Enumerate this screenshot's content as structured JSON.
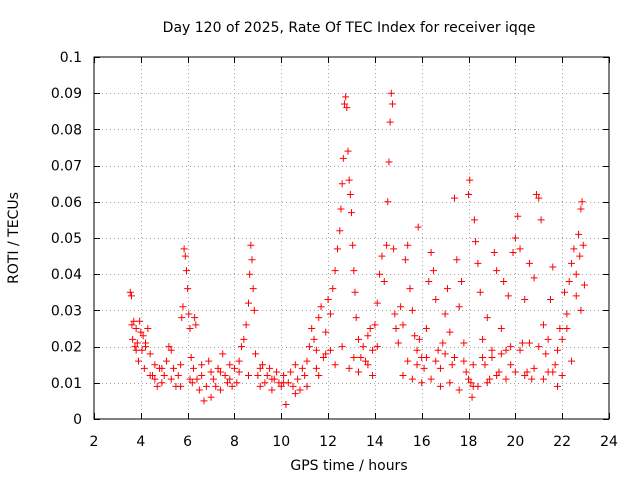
{
  "chart_data": {
    "type": "scatter",
    "title": "Day 120 of 2025, Rate Of TEC Index for receiver iqqe",
    "xlabel": "GPS time / hours",
    "ylabel": "ROTI / TECUs",
    "xlim": [
      2,
      24
    ],
    "ylim": [
      0,
      0.1
    ],
    "xticks": [
      2,
      4,
      6,
      8,
      10,
      12,
      14,
      16,
      18,
      20,
      22,
      24
    ],
    "yticks": [
      0,
      0.01,
      0.02,
      0.03,
      0.04,
      0.05,
      0.06,
      0.07,
      0.08,
      0.09,
      0.1
    ],
    "xtick_labels": [
      "2",
      "4",
      "6",
      "8",
      "10",
      "12",
      "14",
      "16",
      "18",
      "20",
      "22",
      "24"
    ],
    "ytick_labels": [
      "0",
      "0.01",
      "0.02",
      "0.03",
      "0.04",
      "0.05",
      "0.06",
      "0.07",
      "0.08",
      "0.09",
      "0.1"
    ],
    "marker": "+",
    "grid": true,
    "series": [
      {
        "name": "ROTI",
        "color": "#ff0000",
        "points": [
          [
            3.55,
            0.035
          ],
          [
            3.6,
            0.034
          ],
          [
            3.62,
            0.026
          ],
          [
            3.65,
            0.022
          ],
          [
            3.7,
            0.027
          ],
          [
            3.75,
            0.02
          ],
          [
            3.8,
            0.025
          ],
          [
            3.85,
            0.021
          ],
          [
            3.9,
            0.016
          ],
          [
            3.95,
            0.027
          ],
          [
            4.0,
            0.024
          ],
          [
            4.05,
            0.019
          ],
          [
            4.1,
            0.023
          ],
          [
            4.15,
            0.014
          ],
          [
            4.2,
            0.02
          ],
          [
            4.3,
            0.025
          ],
          [
            4.4,
            0.018
          ],
          [
            4.5,
            0.012
          ],
          [
            4.6,
            0.011
          ],
          [
            4.7,
            0.009
          ],
          [
            4.8,
            0.014
          ],
          [
            4.9,
            0.01
          ],
          [
            5.0,
            0.012
          ],
          [
            5.1,
            0.016
          ],
          [
            5.2,
            0.02
          ],
          [
            5.3,
            0.019
          ],
          [
            5.4,
            0.014
          ],
          [
            5.5,
            0.009
          ],
          [
            5.6,
            0.012
          ],
          [
            5.7,
            0.015
          ],
          [
            5.75,
            0.028
          ],
          [
            5.8,
            0.031
          ],
          [
            5.85,
            0.047
          ],
          [
            5.9,
            0.045
          ],
          [
            5.95,
            0.041
          ],
          [
            6.0,
            0.036
          ],
          [
            6.05,
            0.029
          ],
          [
            6.1,
            0.025
          ],
          [
            6.15,
            0.017
          ],
          [
            6.2,
            0.01
          ],
          [
            6.25,
            0.014
          ],
          [
            6.3,
            0.028
          ],
          [
            6.35,
            0.026
          ],
          [
            6.4,
            0.011
          ],
          [
            6.5,
            0.008
          ],
          [
            6.6,
            0.012
          ],
          [
            6.7,
            0.005
          ],
          [
            6.8,
            0.009
          ],
          [
            6.9,
            0.016
          ],
          [
            7.0,
            0.006
          ],
          [
            7.1,
            0.011
          ],
          [
            7.2,
            0.009
          ],
          [
            7.3,
            0.014
          ],
          [
            7.4,
            0.013
          ],
          [
            7.5,
            0.018
          ],
          [
            7.6,
            0.012
          ],
          [
            7.7,
            0.01
          ],
          [
            7.8,
            0.015
          ],
          [
            7.9,
            0.009
          ],
          [
            8.0,
            0.014
          ],
          [
            8.1,
            0.01
          ],
          [
            8.2,
            0.013
          ],
          [
            8.3,
            0.02
          ],
          [
            8.4,
            0.022
          ],
          [
            8.5,
            0.026
          ],
          [
            8.6,
            0.032
          ],
          [
            8.65,
            0.04
          ],
          [
            8.7,
            0.048
          ],
          [
            8.75,
            0.044
          ],
          [
            8.8,
            0.036
          ],
          [
            8.85,
            0.03
          ],
          [
            8.9,
            0.018
          ],
          [
            9.0,
            0.012
          ],
          [
            9.1,
            0.009
          ],
          [
            9.2,
            0.015
          ],
          [
            9.3,
            0.01
          ],
          [
            9.4,
            0.012
          ],
          [
            9.5,
            0.014
          ],
          [
            9.6,
            0.008
          ],
          [
            9.7,
            0.011
          ],
          [
            9.8,
            0.013
          ],
          [
            9.9,
            0.01
          ],
          [
            10.0,
            0.009
          ],
          [
            10.1,
            0.012
          ],
          [
            10.2,
            0.004
          ],
          [
            10.3,
            0.01
          ],
          [
            10.4,
            0.013
          ],
          [
            10.5,
            0.009
          ],
          [
            10.6,
            0.015
          ],
          [
            10.7,
            0.011
          ],
          [
            10.8,
            0.008
          ],
          [
            10.9,
            0.014
          ],
          [
            11.0,
            0.012
          ],
          [
            11.1,
            0.016
          ],
          [
            11.2,
            0.02
          ],
          [
            11.3,
            0.025
          ],
          [
            11.4,
            0.022
          ],
          [
            11.5,
            0.019
          ],
          [
            11.6,
            0.028
          ],
          [
            11.7,
            0.031
          ],
          [
            11.8,
            0.017
          ],
          [
            11.9,
            0.024
          ],
          [
            12.0,
            0.033
          ],
          [
            12.1,
            0.029
          ],
          [
            12.2,
            0.036
          ],
          [
            12.3,
            0.041
          ],
          [
            12.4,
            0.047
          ],
          [
            12.5,
            0.052
          ],
          [
            12.55,
            0.058
          ],
          [
            12.6,
            0.065
          ],
          [
            12.65,
            0.072
          ],
          [
            12.7,
            0.087
          ],
          [
            12.75,
            0.089
          ],
          [
            12.8,
            0.086
          ],
          [
            12.85,
            0.074
          ],
          [
            12.9,
            0.066
          ],
          [
            12.95,
            0.062
          ],
          [
            13.0,
            0.057
          ],
          [
            13.05,
            0.048
          ],
          [
            13.1,
            0.041
          ],
          [
            13.15,
            0.035
          ],
          [
            13.2,
            0.028
          ],
          [
            13.3,
            0.022
          ],
          [
            13.4,
            0.017
          ],
          [
            13.5,
            0.02
          ],
          [
            13.6,
            0.016
          ],
          [
            13.7,
            0.023
          ],
          [
            13.8,
            0.025
          ],
          [
            13.9,
            0.019
          ],
          [
            14.0,
            0.026
          ],
          [
            14.1,
            0.032
          ],
          [
            14.2,
            0.04
          ],
          [
            14.3,
            0.045
          ],
          [
            14.4,
            0.038
          ],
          [
            14.5,
            0.048
          ],
          [
            14.55,
            0.06
          ],
          [
            14.6,
            0.071
          ],
          [
            14.65,
            0.082
          ],
          [
            14.7,
            0.09
          ],
          [
            14.75,
            0.087
          ],
          [
            14.8,
            0.047
          ],
          [
            14.85,
            0.029
          ],
          [
            14.9,
            0.025
          ],
          [
            15.0,
            0.021
          ],
          [
            15.1,
            0.031
          ],
          [
            15.2,
            0.026
          ],
          [
            15.3,
            0.044
          ],
          [
            15.4,
            0.048
          ],
          [
            15.5,
            0.036
          ],
          [
            15.6,
            0.03
          ],
          [
            15.7,
            0.023
          ],
          [
            15.8,
            0.019
          ],
          [
            15.85,
            0.053
          ],
          [
            15.9,
            0.022
          ],
          [
            16.0,
            0.017
          ],
          [
            16.1,
            0.014
          ],
          [
            16.2,
            0.025
          ],
          [
            16.3,
            0.038
          ],
          [
            16.4,
            0.046
          ],
          [
            16.5,
            0.041
          ],
          [
            16.6,
            0.033
          ],
          [
            16.7,
            0.019
          ],
          [
            16.8,
            0.014
          ],
          [
            16.9,
            0.021
          ],
          [
            17.0,
            0.029
          ],
          [
            17.1,
            0.036
          ],
          [
            17.2,
            0.024
          ],
          [
            17.3,
            0.015
          ],
          [
            17.4,
            0.061
          ],
          [
            17.5,
            0.044
          ],
          [
            17.6,
            0.031
          ],
          [
            17.7,
            0.038
          ],
          [
            17.8,
            0.021
          ],
          [
            17.9,
            0.013
          ],
          [
            18.0,
            0.062
          ],
          [
            18.05,
            0.066
          ],
          [
            18.1,
            0.01
          ],
          [
            18.15,
            0.006
          ],
          [
            18.2,
            0.009
          ],
          [
            18.25,
            0.055
          ],
          [
            18.3,
            0.049
          ],
          [
            18.4,
            0.043
          ],
          [
            18.5,
            0.035
          ],
          [
            18.6,
            0.022
          ],
          [
            18.7,
            0.015
          ],
          [
            18.8,
            0.028
          ],
          [
            18.9,
            0.011
          ],
          [
            19.0,
            0.017
          ],
          [
            19.1,
            0.046
          ],
          [
            19.2,
            0.041
          ],
          [
            19.3,
            0.013
          ],
          [
            19.4,
            0.025
          ],
          [
            19.5,
            0.038
          ],
          [
            19.6,
            0.019
          ],
          [
            19.7,
            0.034
          ],
          [
            19.8,
            0.015
          ],
          [
            19.9,
            0.046
          ],
          [
            20.0,
            0.05
          ],
          [
            20.1,
            0.056
          ],
          [
            20.2,
            0.047
          ],
          [
            20.3,
            0.021
          ],
          [
            20.4,
            0.033
          ],
          [
            20.5,
            0.013
          ],
          [
            20.6,
            0.043
          ],
          [
            20.7,
            0.011
          ],
          [
            20.8,
            0.039
          ],
          [
            20.9,
            0.062
          ],
          [
            21.0,
            0.061
          ],
          [
            21.1,
            0.055
          ],
          [
            21.2,
            0.026
          ],
          [
            21.3,
            0.018
          ],
          [
            21.4,
            0.013
          ],
          [
            21.5,
            0.033
          ],
          [
            21.6,
            0.042
          ],
          [
            21.7,
            0.015
          ],
          [
            21.8,
            0.009
          ],
          [
            21.9,
            0.025
          ],
          [
            22.0,
            0.022
          ],
          [
            22.1,
            0.035
          ],
          [
            22.2,
            0.029
          ],
          [
            22.3,
            0.038
          ],
          [
            22.4,
            0.043
          ],
          [
            22.5,
            0.047
          ],
          [
            22.6,
            0.04
          ],
          [
            22.7,
            0.051
          ],
          [
            22.75,
            0.045
          ],
          [
            22.8,
            0.058
          ],
          [
            22.85,
            0.06
          ],
          [
            22.9,
            0.048
          ],
          [
            22.95,
            0.037
          ],
          [
            15.2,
            0.012
          ],
          [
            15.6,
            0.011
          ],
          [
            16.0,
            0.01
          ],
          [
            16.4,
            0.011
          ],
          [
            16.8,
            0.009
          ],
          [
            17.2,
            0.01
          ],
          [
            17.6,
            0.008
          ],
          [
            18.0,
            0.011
          ],
          [
            18.4,
            0.009
          ],
          [
            18.8,
            0.01
          ],
          [
            19.2,
            0.012
          ],
          [
            19.6,
            0.011
          ],
          [
            20.0,
            0.013
          ],
          [
            20.4,
            0.012
          ],
          [
            20.8,
            0.014
          ],
          [
            21.2,
            0.011
          ],
          [
            21.6,
            0.013
          ],
          [
            22.0,
            0.012
          ],
          [
            22.4,
            0.016
          ],
          [
            22.8,
            0.03
          ],
          [
            15.4,
            0.016
          ],
          [
            15.8,
            0.015
          ],
          [
            16.2,
            0.017
          ],
          [
            16.6,
            0.016
          ],
          [
            17.0,
            0.018
          ],
          [
            17.4,
            0.017
          ],
          [
            17.8,
            0.016
          ],
          [
            18.2,
            0.015
          ],
          [
            18.6,
            0.017
          ],
          [
            19.0,
            0.019
          ],
          [
            19.4,
            0.018
          ],
          [
            19.8,
            0.02
          ],
          [
            20.2,
            0.019
          ],
          [
            20.6,
            0.021
          ],
          [
            21.0,
            0.02
          ],
          [
            21.4,
            0.022
          ],
          [
            21.8,
            0.019
          ],
          [
            22.2,
            0.025
          ],
          [
            22.6,
            0.034
          ],
          [
            12.3,
            0.015
          ],
          [
            12.9,
            0.014
          ],
          [
            13.3,
            0.013
          ],
          [
            13.7,
            0.015
          ],
          [
            14.1,
            0.02
          ],
          [
            11.6,
            0.012
          ],
          [
            11.9,
            0.018
          ],
          [
            12.1,
            0.019
          ],
          [
            12.6,
            0.02
          ],
          [
            13.1,
            0.017
          ],
          [
            13.9,
            0.012
          ],
          [
            4.4,
            0.012
          ],
          [
            4.9,
            0.014
          ],
          [
            5.3,
            0.011
          ],
          [
            5.7,
            0.009
          ],
          [
            6.1,
            0.011
          ],
          [
            6.6,
            0.015
          ],
          [
            7.0,
            0.013
          ],
          [
            7.4,
            0.008
          ],
          [
            7.8,
            0.011
          ],
          [
            8.2,
            0.016
          ],
          [
            8.6,
            0.012
          ],
          [
            9.1,
            0.014
          ],
          [
            9.6,
            0.011
          ],
          [
            10.1,
            0.01
          ],
          [
            10.6,
            0.007
          ],
          [
            11.1,
            0.009
          ],
          [
            11.5,
            0.014
          ],
          [
            3.8,
            0.019
          ],
          [
            4.2,
            0.021
          ],
          [
            4.6,
            0.015
          ]
        ]
      }
    ]
  }
}
